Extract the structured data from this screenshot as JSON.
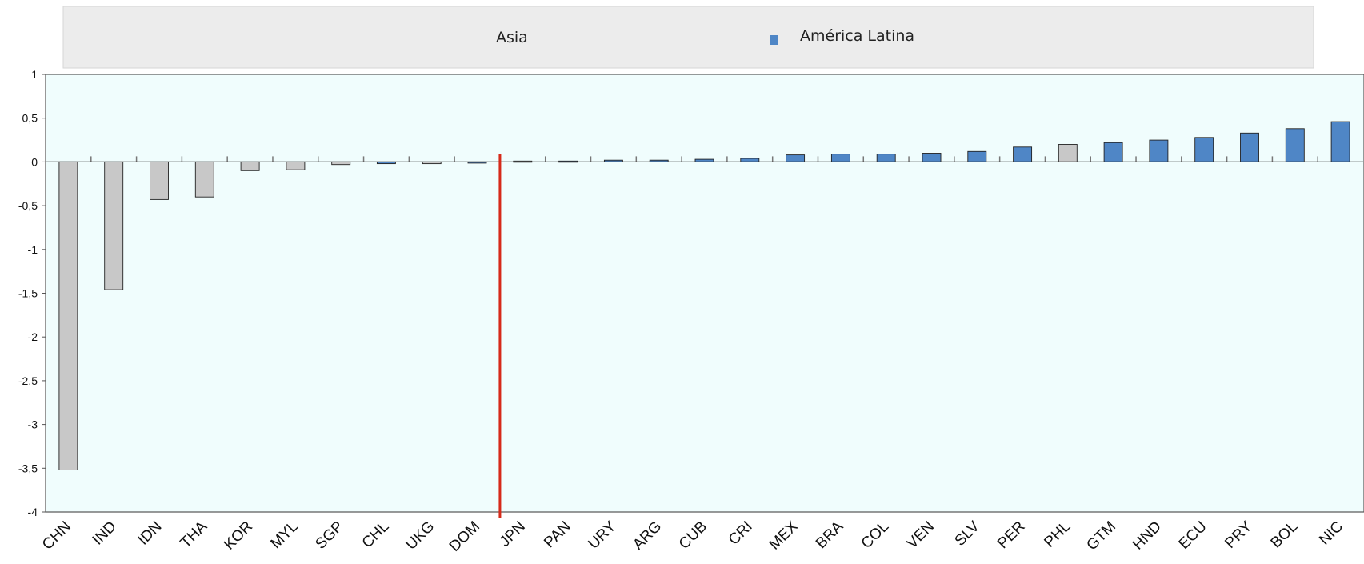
{
  "chart_data": {
    "type": "bar",
    "title": "",
    "xlabel": "",
    "ylabel": "",
    "ylim": [
      -4,
      1
    ],
    "yticks": [
      1,
      0.5,
      0,
      -0.5,
      -1,
      -1.5,
      -2,
      -2.5,
      -3,
      -3.5,
      -4
    ],
    "ytick_labels": [
      "1",
      "0,5",
      "0",
      "-0,5",
      "-1",
      "-1,5",
      "-2",
      "-2,5",
      "-3",
      "-3,5",
      "-4"
    ],
    "grid": false,
    "legend_position": "top",
    "legend": [
      {
        "label": "Asia",
        "color": "#c8c8c8"
      },
      {
        "label": "América Latina",
        "color": "#4f86c6"
      }
    ],
    "colors": {
      "Asia": "#c8c8c8",
      "América Latina": "#4f86c6",
      "divider": "#d62a1a",
      "plot_background": "#f0fdfd",
      "legend_background": "#ececec"
    },
    "categories": [
      "CHN",
      "IND",
      "IDN",
      "THA",
      "KOR",
      "MYL",
      "SGP",
      "CHL",
      "UKG",
      "DOM",
      "JPN",
      "PAN",
      "URY",
      "ARG",
      "CUB",
      "CRI",
      "MEX",
      "BRA",
      "COL",
      "VEN",
      "SLV",
      "PER",
      "PHL",
      "GTM",
      "HND",
      "ECU",
      "PRY",
      "BOL",
      "NIC"
    ],
    "values": [
      -3.52,
      -1.46,
      -0.43,
      -0.4,
      -0.1,
      -0.09,
      -0.03,
      -0.02,
      -0.02,
      -0.01,
      0.01,
      0.01,
      0.02,
      0.02,
      0.03,
      0.04,
      0.08,
      0.09,
      0.09,
      0.1,
      0.12,
      0.17,
      0.2,
      0.22,
      0.25,
      0.28,
      0.33,
      0.38,
      0.46
    ],
    "groups": [
      "Asia",
      "Asia",
      "Asia",
      "Asia",
      "Asia",
      "Asia",
      "Asia",
      "América Latina",
      "Asia",
      "América Latina",
      "Asia",
      "América Latina",
      "América Latina",
      "América Latina",
      "América Latina",
      "América Latina",
      "América Latina",
      "América Latina",
      "América Latina",
      "América Latina",
      "América Latina",
      "América Latina",
      "Asia",
      "América Latina",
      "América Latina",
      "América Latina",
      "América Latina",
      "América Latina",
      "América Latina"
    ],
    "divider_after_category": "DOM"
  }
}
